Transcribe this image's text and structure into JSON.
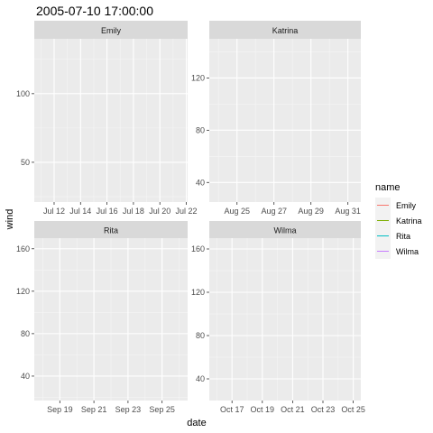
{
  "chart_data": {
    "type": "line",
    "title": "2005-07-10 17:00:00",
    "xlabel": "date",
    "ylabel": "wind",
    "legend": {
      "title": "name",
      "position": "right",
      "entries": [
        {
          "name": "Emily",
          "color": "#F8766D"
        },
        {
          "name": "Katrina",
          "color": "#7CAE00"
        },
        {
          "name": "Rita",
          "color": "#00BFC4"
        },
        {
          "name": "Wilma",
          "color": "#C77CFF"
        }
      ]
    },
    "grid": true,
    "facet_scales": "free",
    "panels": [
      {
        "label": "Emily",
        "x_ticks": [
          "Jul 12",
          "Jul 14",
          "Jul 16",
          "Jul 18",
          "Jul 20",
          "Jul 22"
        ],
        "xlim": [
          0,
          11.6
        ],
        "x_tick_pos": [
          1.5,
          3.5,
          5.5,
          7.5,
          9.5,
          11.5
        ],
        "y_ticks": [
          50,
          100
        ],
        "ylim": [
          21,
          140
        ],
        "series": []
      },
      {
        "label": "Katrina",
        "x_ticks": [
          "Aug 25",
          "Aug 27",
          "Aug 29",
          "Aug 31"
        ],
        "xlim": [
          0,
          8.2
        ],
        "x_tick_pos": [
          1.5,
          3.5,
          5.5,
          7.5
        ],
        "y_ticks": [
          40,
          80,
          120
        ],
        "ylim": [
          25,
          150
        ],
        "series": []
      },
      {
        "label": "Rita",
        "x_ticks": [
          "Sep 19",
          "Sep 21",
          "Sep 23",
          "Sep 25"
        ],
        "xlim": [
          0,
          9
        ],
        "x_tick_pos": [
          1.5,
          3.5,
          5.5,
          7.5
        ],
        "y_ticks": [
          40,
          80,
          120,
          160
        ],
        "ylim": [
          17,
          170
        ],
        "series": []
      },
      {
        "label": "Wilma",
        "x_ticks": [
          "Oct 17",
          "Oct 19",
          "Oct 21",
          "Oct 23",
          "Oct 25"
        ],
        "xlim": [
          0,
          10
        ],
        "x_tick_pos": [
          1.5,
          3.5,
          5.5,
          7.5,
          9.5
        ],
        "y_ticks": [
          40,
          80,
          120,
          160
        ],
        "ylim": [
          20,
          170
        ],
        "series": []
      }
    ]
  }
}
